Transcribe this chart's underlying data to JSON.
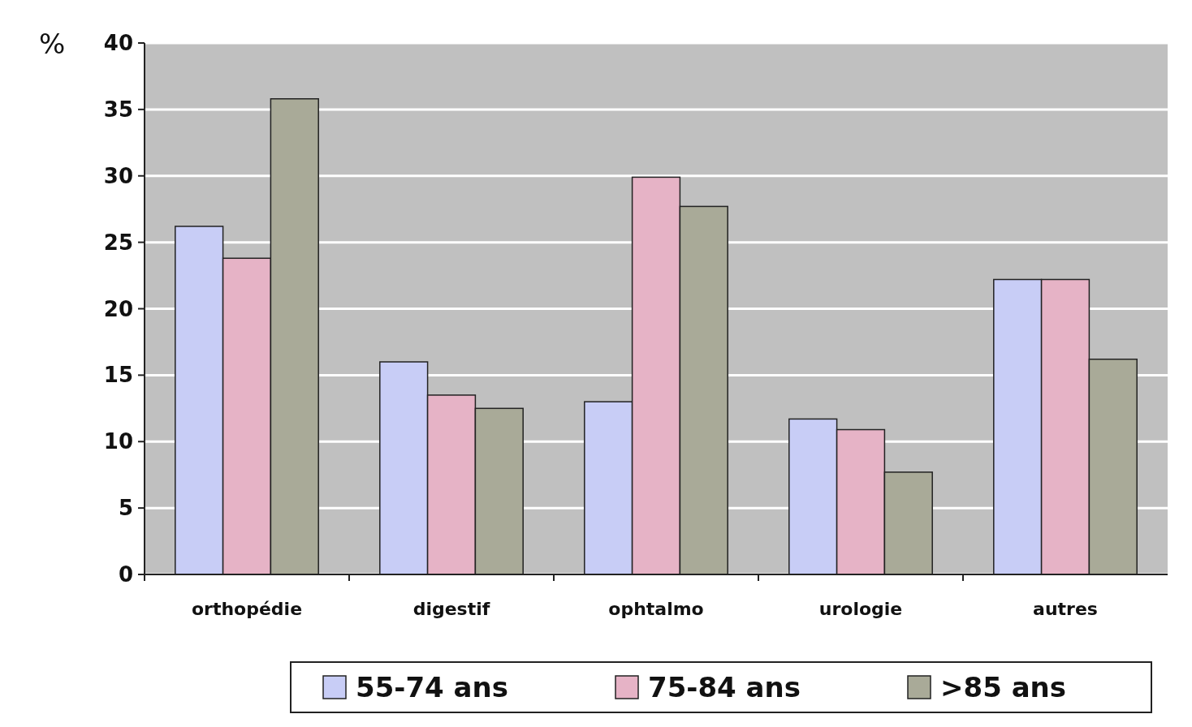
{
  "chart_data": {
    "type": "bar",
    "ylabel": "%",
    "categories": [
      "orthopédie",
      "digestif",
      "ophtalmo",
      "urologie",
      "autres"
    ],
    "series": [
      {
        "name": "55-74 ans",
        "color": "#c8cdf6",
        "values": [
          26.2,
          16,
          13,
          11.7,
          22.2
        ]
      },
      {
        "name": "75-84 ans",
        "color": "#e6b3c6",
        "values": [
          23.8,
          13.5,
          29.9,
          10.9,
          22.2
        ]
      },
      {
        "name": ">85 ans",
        "color": "#a9aa98",
        "values": [
          35.8,
          12.5,
          27.7,
          7.7,
          16.2
        ]
      }
    ],
    "ylim": [
      0,
      40
    ],
    "yticks": [
      0,
      5,
      10,
      15,
      20,
      25,
      30,
      35,
      40
    ],
    "grid": "y",
    "legend": "bottom"
  }
}
